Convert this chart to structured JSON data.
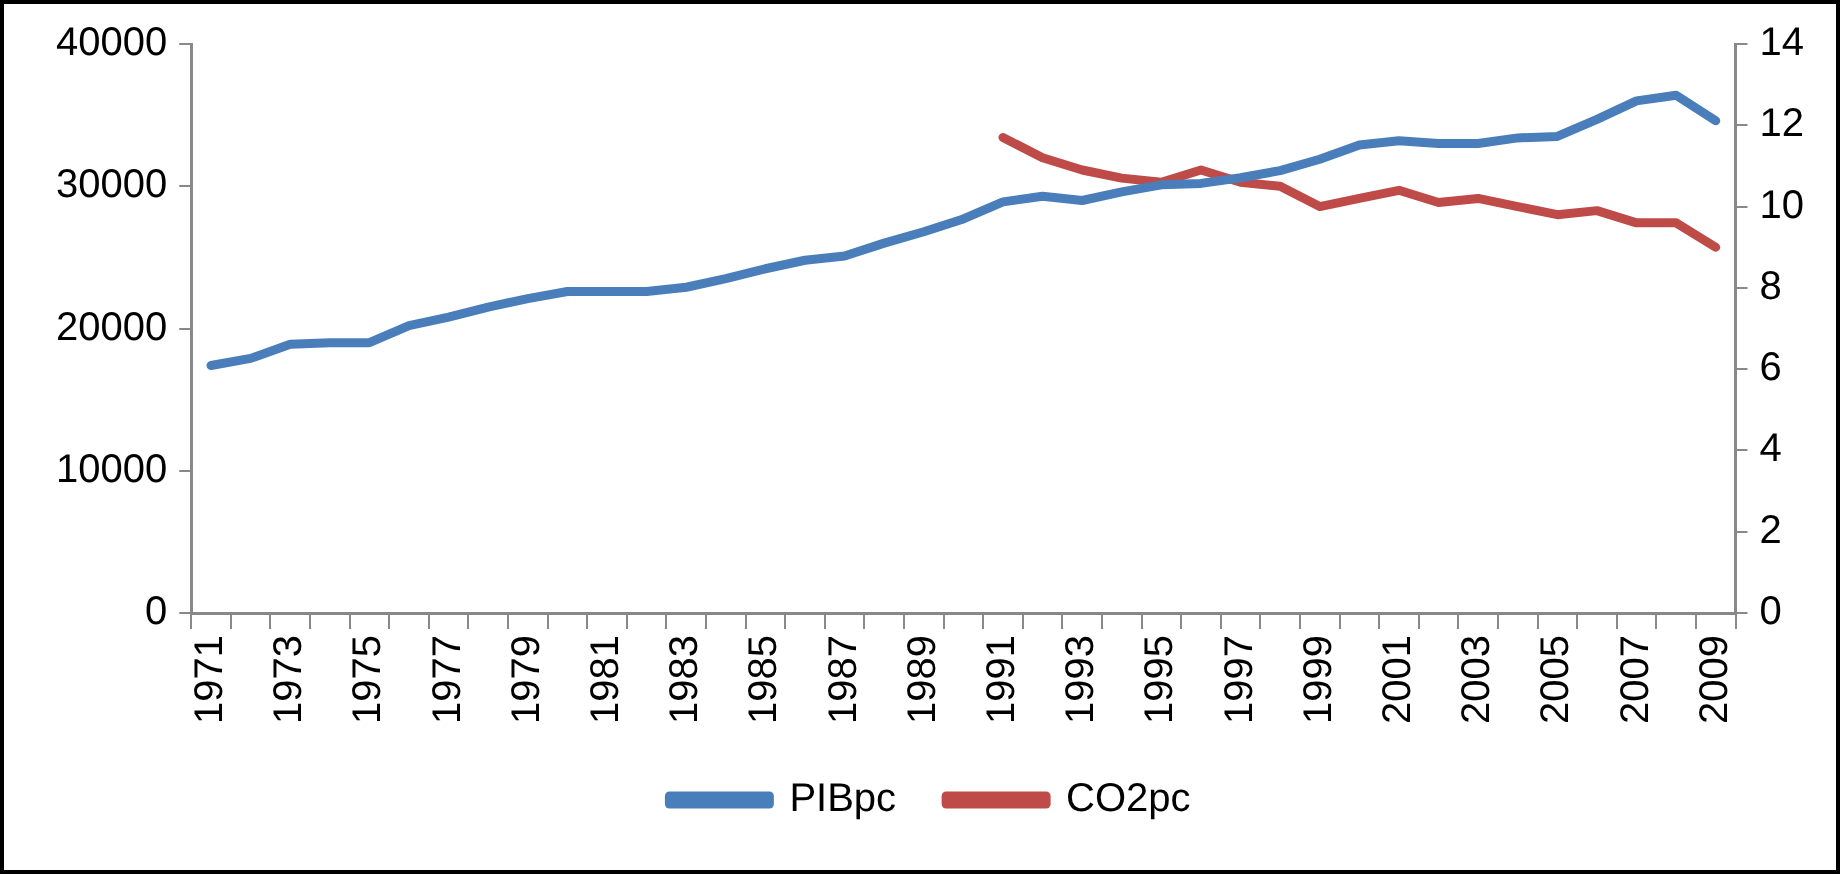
{
  "chart_data": {
    "type": "line",
    "categories": [
      "1971",
      null,
      "1973",
      null,
      "1975",
      null,
      "1977",
      null,
      "1979",
      null,
      "1981",
      null,
      "1983",
      null,
      "1985",
      null,
      "1987",
      null,
      "1989",
      null,
      "1991",
      null,
      "1993",
      null,
      "1995",
      null,
      "1997",
      null,
      "1999",
      null,
      "2001",
      null,
      "2003",
      null,
      "2005",
      null,
      "2007",
      null,
      "2009"
    ],
    "series": [
      {
        "name": "PIBpc",
        "color": "#4a7ebb",
        "values": [
          17400,
          17900,
          18900,
          19000,
          19000,
          20200,
          20800,
          21500,
          22100,
          22600,
          22600,
          22600,
          22900,
          23500,
          24200,
          24800,
          25100,
          26000,
          26800,
          27700,
          28900,
          29300,
          29000,
          29600,
          30100,
          30200,
          30600,
          31100,
          31900,
          32900,
          33200,
          33000,
          33000,
          33400,
          33500,
          34700,
          36000,
          36400,
          34600
        ]
      },
      {
        "name": "CO2pc",
        "color": "#be4b48",
        "axis": "y2",
        "values": [
          null,
          null,
          null,
          null,
          null,
          null,
          null,
          null,
          null,
          null,
          null,
          null,
          null,
          null,
          null,
          null,
          null,
          null,
          null,
          null,
          11.7,
          11.2,
          10.9,
          10.7,
          10.6,
          10.9,
          10.6,
          10.5,
          10.0,
          10.2,
          10.4,
          10.1,
          10.2,
          10.0,
          9.8,
          9.9,
          9.6,
          9.6,
          9.0
        ]
      }
    ],
    "ylim": [
      0,
      40000
    ],
    "yticks": [
      0,
      10000,
      20000,
      30000,
      40000
    ],
    "y2lim": [
      0,
      14
    ],
    "y2ticks": [
      0,
      2,
      4,
      6,
      8,
      10,
      12,
      14
    ],
    "grid": false,
    "legend": "bottom",
    "marker": "none",
    "line_style": "solid"
  }
}
